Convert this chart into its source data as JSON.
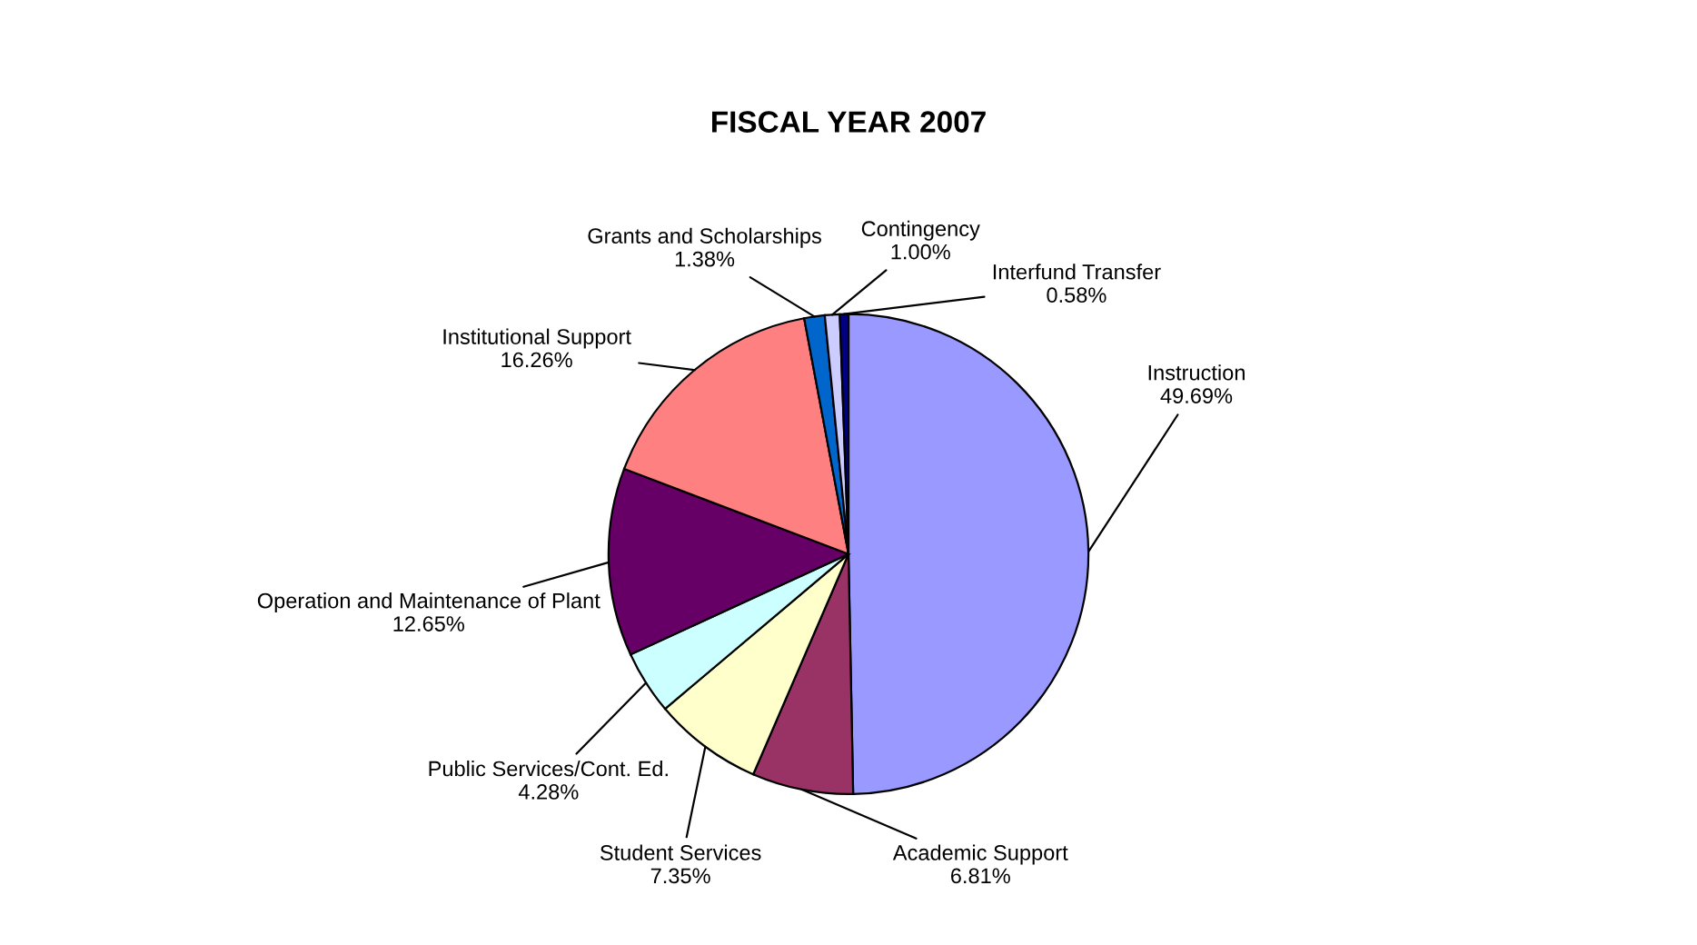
{
  "chart_data": {
    "type": "pie",
    "title": "FISCAL YEAR 2007",
    "categories": [
      "Instruction",
      "Academic Support",
      "Student Services",
      "Public Services/Cont. Ed.",
      "Operation and Maintenance of Plant",
      "Institutional Support",
      "Grants and Scholarships",
      "Contingency",
      "Interfund Transfer"
    ],
    "values": [
      49.69,
      6.81,
      7.35,
      4.28,
      12.65,
      16.26,
      1.38,
      1.0,
      0.58
    ],
    "value_labels": [
      "49.69%",
      "6.81%",
      "7.35%",
      "4.28%",
      "12.65%",
      "16.26%",
      "1.38%",
      "1.00%",
      "0.58%"
    ],
    "colors": [
      "#9999ff",
      "#993366",
      "#ffffcc",
      "#ccffff",
      "#660066",
      "#ff8080",
      "#0066cc",
      "#ccccff",
      "#000080"
    ]
  }
}
